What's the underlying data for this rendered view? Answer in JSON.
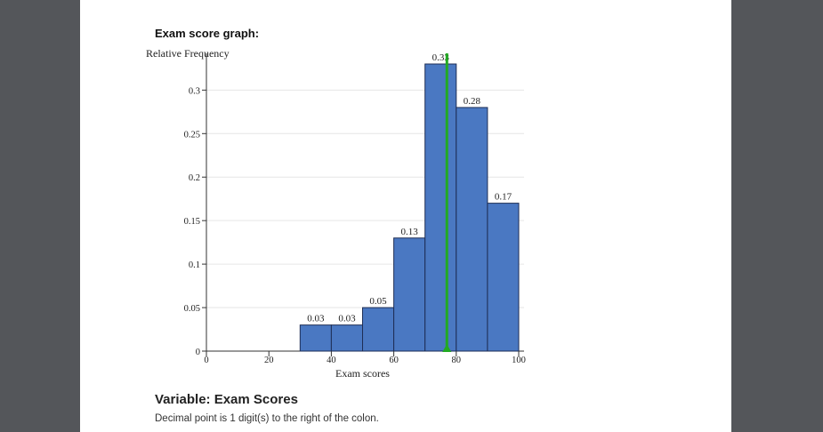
{
  "graph_title": "Exam score graph:",
  "variable_heading": "Variable: Exam Scores",
  "decimal_note": "Decimal point is 1 digit(s) to the right of the colon.",
  "colors": {
    "bar_fill": "#4a78c2",
    "bar_stroke": "#1e2e55",
    "mean_line": "#22aa22",
    "gridline": "#e6e6e6",
    "background": "#54565a"
  },
  "chart_data": {
    "type": "bar",
    "ylabel": "Relative Frequency",
    "xlabel": "Exam scores",
    "xlim": [
      0,
      100
    ],
    "ylim": [
      0,
      0.33
    ],
    "x_ticks": [
      "0",
      "20",
      "40",
      "60",
      "80",
      "100"
    ],
    "y_ticks": [
      "0",
      "0.05",
      "0.1",
      "0.15",
      "0.2",
      "0.25",
      "0.3"
    ],
    "grid": true,
    "bins": [
      {
        "from": 30,
        "to": 40,
        "value": 0.03,
        "label": "0.03"
      },
      {
        "from": 40,
        "to": 50,
        "value": 0.03,
        "label": "0.03"
      },
      {
        "from": 50,
        "to": 60,
        "value": 0.05,
        "label": "0.05"
      },
      {
        "from": 60,
        "to": 70,
        "value": 0.13,
        "label": "0.13"
      },
      {
        "from": 70,
        "to": 80,
        "value": 0.33,
        "label": "0.33"
      },
      {
        "from": 80,
        "to": 90,
        "value": 0.28,
        "label": "0.28"
      },
      {
        "from": 90,
        "to": 100,
        "value": 0.17,
        "label": "0.17"
      }
    ],
    "mean_marker": 77
  }
}
